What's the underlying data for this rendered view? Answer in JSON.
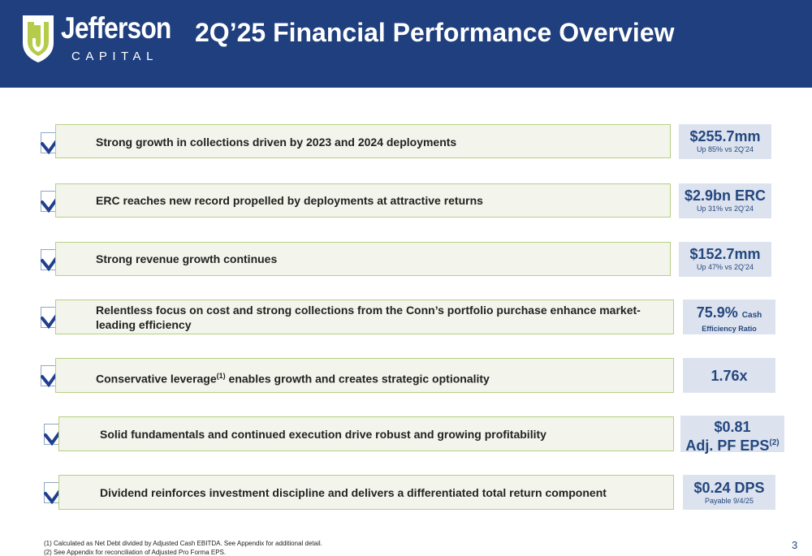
{
  "header": {
    "logo_word": "Jefferson",
    "logo_sub": "CAPITAL",
    "title": "2Q’25 Financial Performance Overview"
  },
  "rows": [
    {
      "text": "Strong growth in collections driven by 2023 and 2024 deployments",
      "value": "$255.7mm",
      "sub": "Up 85% vs 2Q’24"
    },
    {
      "text": "ERC reaches new record propelled by deployments at attractive returns",
      "value": "$2.9bn ERC",
      "sub": "Up 31% vs 2Q’24"
    },
    {
      "text": "Strong revenue growth continues",
      "value": "$152.7mm",
      "sub": "Up 47% vs 2Q’24"
    },
    {
      "text": "Relentless focus on cost and strong collections from the Conn’s portfolio purchase enhance market-leading efficiency",
      "value": "75.9%",
      "value_small": "Cash",
      "sub": "Efficiency Ratio"
    },
    {
      "text_pre": "Conservative leverage",
      "text_sup": "(1)",
      "text_post": " enables growth and creates strategic optionality",
      "value": "1.76x"
    },
    {
      "text": "Solid fundamentals and continued execution drive robust and growing profitability",
      "value": "$0.81",
      "value2": "Adj. PF EPS",
      "value2_sup": "(2)"
    },
    {
      "text": "Dividend reinforces investment discipline and delivers a differentiated total return component",
      "value": "$0.24 DPS",
      "sub": "Payable 9/4/25"
    }
  ],
  "footnotes": [
    "(1) Calculated as Net Debt divided by Adjusted Cash EBITDA. See Appendix for additional detail.",
    "(2) See Appendix for reconciliation of Adjusted Pro Forma EPS."
  ],
  "page_number": "3",
  "colors": {
    "header_bg": "#1f3f7f",
    "accent_blue": "#24477f",
    "row_fill": "#f3f5ec",
    "row_border": "#b7cf83",
    "metric_fill": "#dde3ee",
    "logo_green": "#b5cc4a"
  },
  "icons": {
    "check": "checkbox-check-icon",
    "logo": "shield-logo-icon"
  }
}
